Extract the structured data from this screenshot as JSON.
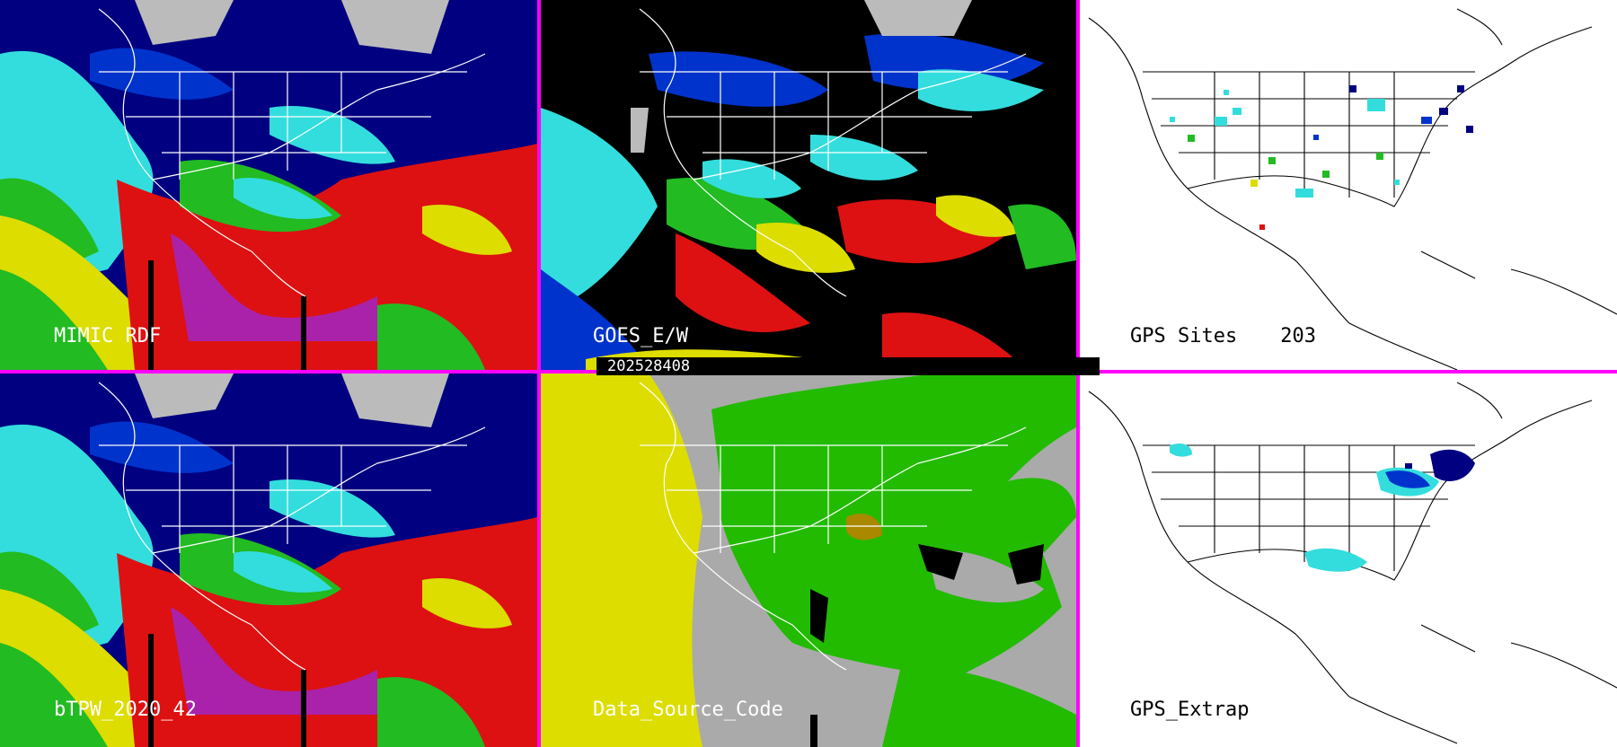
{
  "colors": {
    "separator": "#ff00ff",
    "ocean_blue": "#000080",
    "mid_blue": "#0033cc",
    "cyan": "#33dddd",
    "green": "#22bb22",
    "yellow": "#dddd00",
    "red": "#dd1111",
    "purple": "#aa22aa",
    "gray_cloud": "#bbbbbb",
    "source_gray": "#aaaaaa",
    "source_green": "#22bb00",
    "source_yellow": "#dddd00",
    "white_bg": "#ffffff"
  },
  "panels": {
    "mimic": {
      "label": "MIMIC RDF"
    },
    "goes": {
      "label": "GOES_E/W"
    },
    "gps_sites": {
      "label": "GPS Sites",
      "count": "203"
    },
    "btpw": {
      "label": "bTPW_2020_42"
    },
    "data_source": {
      "label": "Data_Source_Code"
    },
    "gps_extrap": {
      "label": "GPS_Extrap"
    }
  },
  "timestamp": "202528408",
  "icons": {
    "mimic": "continent-map-icon",
    "goes": "continent-map-icon",
    "gps_sites": "site-map-icon",
    "btpw": "continent-map-icon",
    "data_source": "continent-map-icon",
    "gps_extrap": "continent-map-icon"
  }
}
